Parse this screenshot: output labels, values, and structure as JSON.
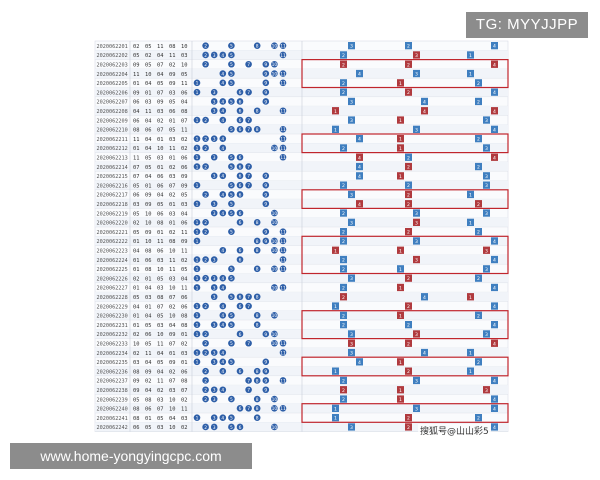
{
  "watermarks": {
    "top": "TG: MYYJJPP",
    "bottom": "www.home-yongyingcpc.com",
    "small": "搜狐号@山山彩5"
  },
  "colors": {
    "blue_ball": "#2e5fa8",
    "red_cell": "#b03a3e",
    "blue_cell": "#3f7fc0",
    "grid_line": "#d9dde6",
    "highlight_red": "#c0262d"
  },
  "rows": [
    {
      "id": "2020062201",
      "nums": [
        "02",
        "05",
        "11",
        "08",
        "10"
      ]
    },
    {
      "id": "2020062202",
      "nums": [
        "05",
        "02",
        "04",
        "11",
        "03"
      ]
    },
    {
      "id": "2020062203",
      "nums": [
        "09",
        "05",
        "07",
        "02",
        "10"
      ]
    },
    {
      "id": "2020062204",
      "nums": [
        "11",
        "10",
        "04",
        "09",
        "05"
      ]
    },
    {
      "id": "2020062205",
      "nums": [
        "01",
        "04",
        "05",
        "09",
        "11"
      ]
    },
    {
      "id": "2020062206",
      "nums": [
        "09",
        "01",
        "07",
        "03",
        "06"
      ]
    },
    {
      "id": "2020062207",
      "nums": [
        "06",
        "03",
        "09",
        "05",
        "04"
      ]
    },
    {
      "id": "2020062208",
      "nums": [
        "04",
        "11",
        "03",
        "06",
        "08"
      ]
    },
    {
      "id": "2020062209",
      "nums": [
        "06",
        "04",
        "02",
        "01",
        "07"
      ]
    },
    {
      "id": "2020062210",
      "nums": [
        "08",
        "06",
        "07",
        "05",
        "11"
      ]
    },
    {
      "id": "2020062211",
      "nums": [
        "11",
        "04",
        "01",
        "03",
        "02"
      ]
    },
    {
      "id": "2020062212",
      "nums": [
        "01",
        "04",
        "10",
        "11",
        "02"
      ]
    },
    {
      "id": "2020062213",
      "nums": [
        "11",
        "05",
        "03",
        "01",
        "06"
      ]
    },
    {
      "id": "2020062214",
      "nums": [
        "07",
        "05",
        "01",
        "02",
        "06"
      ]
    },
    {
      "id": "2020062215",
      "nums": [
        "07",
        "04",
        "06",
        "03",
        "09"
      ]
    },
    {
      "id": "2020062216",
      "nums": [
        "05",
        "01",
        "06",
        "07",
        "09"
      ]
    },
    {
      "id": "2020062217",
      "nums": [
        "06",
        "09",
        "04",
        "02",
        "05"
      ]
    },
    {
      "id": "2020062218",
      "nums": [
        "03",
        "09",
        "05",
        "01",
        "03"
      ]
    },
    {
      "id": "2020062219",
      "nums": [
        "05",
        "10",
        "06",
        "03",
        "04"
      ]
    },
    {
      "id": "2020062220",
      "nums": [
        "02",
        "10",
        "08",
        "01",
        "06"
      ]
    },
    {
      "id": "2020062221",
      "nums": [
        "05",
        "09",
        "01",
        "02",
        "11"
      ]
    },
    {
      "id": "2020062222",
      "nums": [
        "01",
        "10",
        "11",
        "08",
        "09"
      ]
    },
    {
      "id": "2020062223",
      "nums": [
        "04",
        "08",
        "06",
        "10",
        "11"
      ]
    },
    {
      "id": "2020062224",
      "nums": [
        "01",
        "06",
        "03",
        "11",
        "02"
      ]
    },
    {
      "id": "2020062225",
      "nums": [
        "01",
        "08",
        "10",
        "11",
        "05"
      ]
    },
    {
      "id": "2020062226",
      "nums": [
        "02",
        "01",
        "05",
        "03",
        "04"
      ]
    },
    {
      "id": "2020062227",
      "nums": [
        "01",
        "04",
        "03",
        "10",
        "11"
      ]
    },
    {
      "id": "2020062228",
      "nums": [
        "05",
        "03",
        "08",
        "07",
        "06"
      ]
    },
    {
      "id": "2020062229",
      "nums": [
        "04",
        "01",
        "07",
        "02",
        "06"
      ]
    },
    {
      "id": "2020062230",
      "nums": [
        "01",
        "04",
        "05",
        "10",
        "08"
      ]
    },
    {
      "id": "2020062231",
      "nums": [
        "01",
        "05",
        "03",
        "04",
        "08"
      ]
    },
    {
      "id": "2020062232",
      "nums": [
        "02",
        "06",
        "10",
        "09",
        "01"
      ]
    },
    {
      "id": "2020062233",
      "nums": [
        "10",
        "05",
        "11",
        "07",
        "02"
      ]
    },
    {
      "id": "2020062234",
      "nums": [
        "02",
        "11",
        "04",
        "01",
        "03"
      ]
    },
    {
      "id": "2020062235",
      "nums": [
        "03",
        "04",
        "05",
        "09",
        "01"
      ]
    },
    {
      "id": "2020062236",
      "nums": [
        "08",
        "09",
        "04",
        "02",
        "06"
      ]
    },
    {
      "id": "2020062237",
      "nums": [
        "09",
        "02",
        "11",
        "07",
        "08"
      ]
    },
    {
      "id": "2020062238",
      "nums": [
        "09",
        "04",
        "02",
        "03",
        "07"
      ]
    },
    {
      "id": "2020062239",
      "nums": [
        "05",
        "08",
        "03",
        "10",
        "02"
      ]
    },
    {
      "id": "2020062240",
      "nums": [
        "08",
        "06",
        "07",
        "10",
        "11"
      ]
    },
    {
      "id": "2020062241",
      "nums": [
        "08",
        "01",
        "05",
        "04",
        "03"
      ]
    },
    {
      "id": "2020062242",
      "nums": [
        "06",
        "05",
        "03",
        "10",
        "02"
      ]
    }
  ]
}
